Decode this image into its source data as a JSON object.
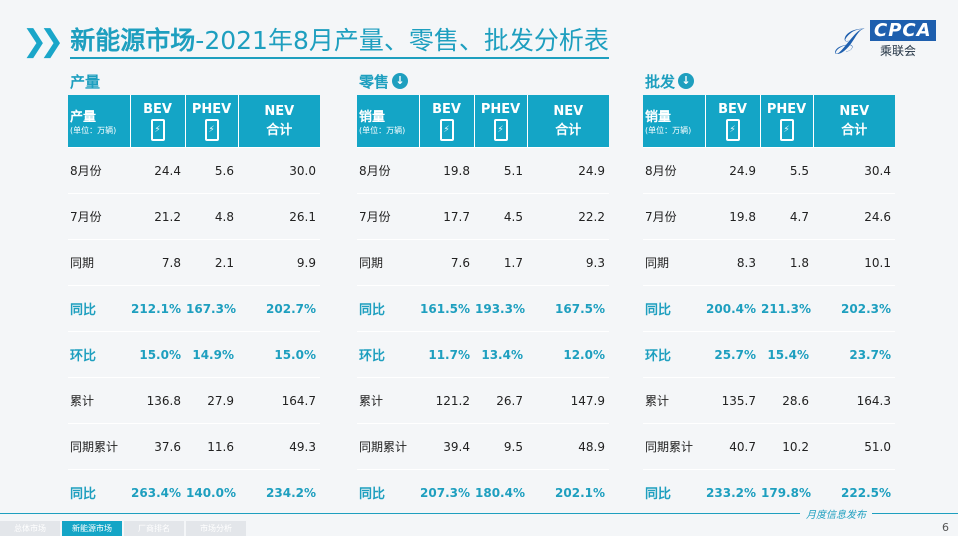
{
  "title": {
    "bold": "新能源市场",
    "rest": "-2021年8月产量、零售、批发分析表"
  },
  "logo": {
    "text": "CPCA",
    "cn": "乘联会"
  },
  "columns": {
    "bev": "BEV",
    "phev": "PHEV",
    "nev": "NEV",
    "nev2": "合计",
    "unit": "(单位：万辆)"
  },
  "sections": [
    {
      "title": "产量",
      "has_icon": false,
      "header": "产量",
      "rows": [
        [
          "8月份",
          "24.4",
          "5.6",
          "30.0"
        ],
        [
          "7月份",
          "21.2",
          "4.8",
          "26.1"
        ],
        [
          "同期",
          "7.8",
          "2.1",
          "9.9"
        ],
        [
          "同比",
          "212.1%",
          "167.3%",
          "202.7%"
        ],
        [
          "环比",
          "15.0%",
          "14.9%",
          "15.0%"
        ],
        [
          "累计",
          "136.8",
          "27.9",
          "164.7"
        ],
        [
          "同期累计",
          "37.6",
          "11.6",
          "49.3"
        ],
        [
          "同比",
          "263.4%",
          "140.0%",
          "234.2%"
        ]
      ]
    },
    {
      "title": "零售",
      "has_icon": true,
      "header": "销量",
      "rows": [
        [
          "8月份",
          "19.8",
          "5.1",
          "24.9"
        ],
        [
          "7月份",
          "17.7",
          "4.5",
          "22.2"
        ],
        [
          "同期",
          "7.6",
          "1.7",
          "9.3"
        ],
        [
          "同比",
          "161.5%",
          "193.3%",
          "167.5%"
        ],
        [
          "环比",
          "11.7%",
          "13.4%",
          "12.0%"
        ],
        [
          "累计",
          "121.2",
          "26.7",
          "147.9"
        ],
        [
          "同期累计",
          "39.4",
          "9.5",
          "48.9"
        ],
        [
          "同比",
          "207.3%",
          "180.4%",
          "202.1%"
        ]
      ]
    },
    {
      "title": "批发",
      "has_icon": true,
      "header": "销量",
      "rows": [
        [
          "8月份",
          "24.9",
          "5.5",
          "30.4"
        ],
        [
          "7月份",
          "19.8",
          "4.7",
          "24.6"
        ],
        [
          "同期",
          "8.3",
          "1.8",
          "10.1"
        ],
        [
          "同比",
          "200.4%",
          "211.3%",
          "202.3%"
        ],
        [
          "环比",
          "25.7%",
          "15.4%",
          "23.7%"
        ],
        [
          "累计",
          "135.7",
          "28.6",
          "164.3"
        ],
        [
          "同期累计",
          "40.7",
          "10.2",
          "51.0"
        ],
        [
          "同比",
          "233.2%",
          "179.8%",
          "222.5%"
        ]
      ]
    }
  ],
  "footer": {
    "text": "月度信息发布",
    "page": "6",
    "tabs": [
      "总体市场",
      "新能源市场",
      "厂商排名",
      "市场分析"
    ],
    "active_tab": 1
  }
}
